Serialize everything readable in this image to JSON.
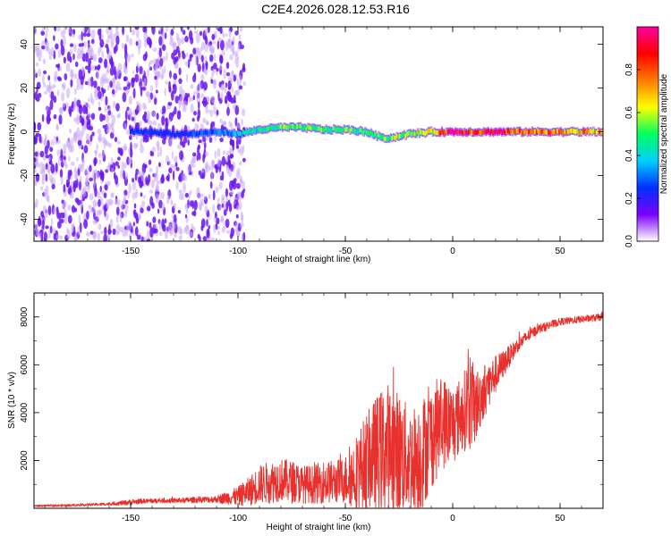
{
  "title": "C2E4.2026.028.12.53.R16",
  "colors": {
    "line": "#e8302c",
    "speckle": "#6a16ee",
    "speckle_light": "#c9a8f5",
    "frame": "#000000"
  },
  "colorbar": {
    "label": "Normalized spectral amplitude",
    "ticks": [
      "0.0",
      "0.2",
      "0.4",
      "0.6",
      "0.8"
    ],
    "tick_values": [
      0.0,
      0.2,
      0.4,
      0.6,
      0.8
    ],
    "range": [
      0,
      1
    ],
    "stops": [
      "#ffffff",
      "#7a00ff",
      "#0030ff",
      "#00d0ff",
      "#00ff60",
      "#ffff00",
      "#ff7a00",
      "#ff0000",
      "#ff00a0"
    ]
  },
  "chart_data": [
    {
      "type": "heatmap",
      "name": "spectrogram",
      "xlabel": "Height of straight line (km)",
      "ylabel": "Frequency (Hz)",
      "xlim": [
        -195,
        70
      ],
      "ylim": [
        -50,
        48
      ],
      "x_ticks": [
        -150,
        -100,
        -50,
        0,
        50
      ],
      "x_tick_labels": [
        "-150",
        "-100",
        "-50",
        "0",
        "50"
      ],
      "y_ticks": [
        -40,
        -20,
        0,
        20,
        40
      ],
      "y_tick_labels": [
        "-40",
        "-20",
        "0",
        "20",
        "40"
      ],
      "noise_x_end": -97,
      "ridge": {
        "x": [
          -150,
          -140,
          -130,
          -120,
          -110,
          -100,
          -90,
          -80,
          -70,
          -60,
          -50,
          -40,
          -35,
          -30,
          -25,
          -20,
          -10,
          0,
          10,
          20,
          30,
          40,
          50,
          60,
          70
        ],
        "freq": [
          0,
          0,
          -1,
          -1,
          0,
          -1,
          1,
          2,
          2,
          1,
          1,
          0,
          -2,
          -3,
          -2,
          -1,
          0,
          0,
          0,
          0,
          0,
          0,
          0,
          0,
          0
        ],
        "amplitude": [
          0.25,
          0.25,
          0.22,
          0.25,
          0.3,
          0.35,
          0.45,
          0.5,
          0.52,
          0.5,
          0.5,
          0.5,
          0.52,
          0.55,
          0.55,
          0.58,
          0.6,
          0.95,
          0.8,
          0.9,
          0.75,
          0.72,
          0.7,
          0.7,
          0.7
        ]
      }
    },
    {
      "type": "line",
      "name": "snr",
      "xlabel": "Height of straight line (km)",
      "ylabel": "SNR (10 * v/v)",
      "xlim": [
        -195,
        70
      ],
      "ylim": [
        0,
        9000
      ],
      "x_ticks": [
        -150,
        -100,
        -50,
        0,
        50
      ],
      "x_tick_labels": [
        "-150",
        "-100",
        "-50",
        "0",
        "50"
      ],
      "y_ticks": [
        2000,
        4000,
        6000,
        8000
      ],
      "y_tick_labels": [
        "2000",
        "4000",
        "6000",
        "8000"
      ],
      "series": [
        {
          "name": "SNR",
          "x": [
            -195,
            -180,
            -160,
            -150,
            -145,
            -130,
            -110,
            -100,
            -95,
            -90,
            -85,
            -80,
            -75,
            -70,
            -65,
            -60,
            -55,
            -50,
            -45,
            -40,
            -35,
            -30,
            -25,
            -20,
            -15,
            -10,
            -5,
            0,
            5,
            8,
            10,
            12,
            15,
            20,
            25,
            30,
            35,
            40,
            50,
            60,
            70
          ],
          "baseline": [
            100,
            120,
            180,
            250,
            300,
            320,
            380,
            500,
            700,
            1000,
            1100,
            1200,
            1100,
            1000,
            1000,
            1100,
            1100,
            1200,
            1500,
            2000,
            2300,
            2500,
            2300,
            2000,
            2200,
            3000,
            3600,
            3500,
            4000,
            4600,
            4200,
            4500,
            5000,
            5600,
            6200,
            6800,
            7200,
            7500,
            7800,
            7900,
            8000
          ],
          "amplitude": [
            40,
            50,
            60,
            120,
            100,
            100,
            150,
            400,
            600,
            800,
            900,
            900,
            900,
            800,
            800,
            900,
            900,
            1000,
            1600,
            2000,
            2500,
            2800,
            2600,
            2200,
            2400,
            2200,
            2000,
            1700,
            1600,
            2200,
            1600,
            1400,
            1100,
            800,
            500,
            300,
            250,
            200,
            150,
            150,
            150
          ]
        }
      ]
    }
  ]
}
